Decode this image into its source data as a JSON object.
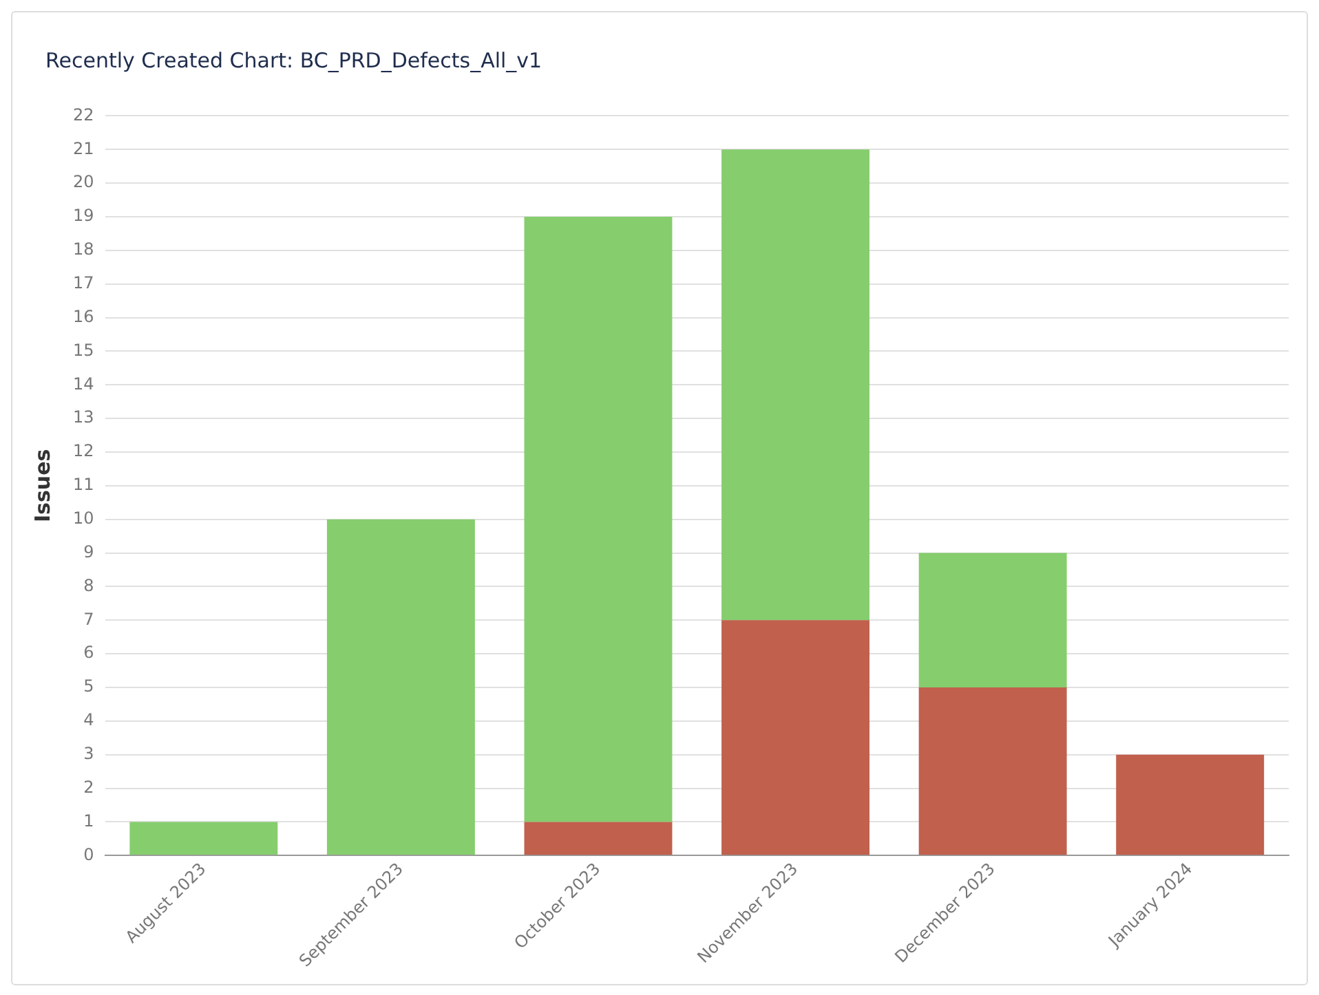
{
  "chart_data": {
    "type": "bar",
    "title": "Recently Created Chart: BC_PRD_Defects_All_v1",
    "ylabel": "Issues",
    "categories": [
      "August 2023",
      "September 2023",
      "October 2023",
      "November 2023",
      "December 2023",
      "January 2024"
    ],
    "stacked": true,
    "series": [
      {
        "color": "#c0604d",
        "values": [
          0,
          0,
          1,
          7,
          5,
          3
        ]
      },
      {
        "color": "#86cd6e",
        "values": [
          1,
          10,
          18,
          14,
          4,
          0
        ]
      }
    ],
    "ylim": [
      0,
      22
    ],
    "yticks": [
      0,
      1,
      2,
      3,
      4,
      5,
      6,
      7,
      8,
      9,
      10,
      11,
      12,
      13,
      14,
      15,
      16,
      17,
      18,
      19,
      20,
      21,
      22
    ],
    "grid": "y",
    "legend": false
  }
}
